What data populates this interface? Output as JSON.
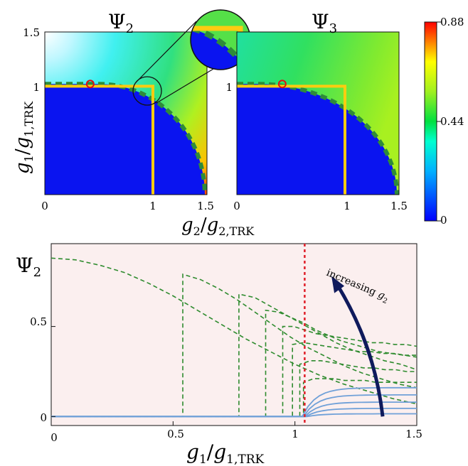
{
  "chart_data": [
    {
      "type": "heatmap",
      "title": "Ψ2",
      "title_symbol": "Ψ",
      "title_sub": "2",
      "x": {
        "range": [
          0,
          1.5
        ],
        "ticks": [
          0,
          1,
          1.5
        ],
        "tick_labels": [
          "0",
          "1",
          "1.5"
        ]
      },
      "y": {
        "range": [
          0,
          1.5
        ],
        "ticks": [
          1,
          1.5
        ],
        "tick_labels": [
          "1",
          "1.5"
        ]
      },
      "phase_boundary": "dashed green quarter-arc from (0.5, 1.02) to (1.48, 0)",
      "marker": {
        "shape": "open circle",
        "x": 0.42,
        "y": 1.02
      },
      "yellow_path": [
        [
          0,
          1
        ],
        [
          1,
          1
        ],
        [
          1,
          0
        ]
      ],
      "inset": "magnified view of the corner near (1, 1)"
    },
    {
      "type": "heatmap",
      "title": "Ψ3",
      "title_symbol": "Ψ",
      "title_sub": "3",
      "x": {
        "range": [
          0,
          1.5
        ],
        "ticks": [
          0,
          1,
          1.5
        ],
        "tick_labels": [
          "0",
          "1",
          "1.5"
        ]
      },
      "y": {
        "range": [
          0,
          1.5
        ],
        "ticks": [
          1
        ],
        "tick_labels": [
          "1"
        ]
      },
      "phase_boundary": "dashed green quarter-arc from (0.2, 1.02) to (1.48, 0)",
      "marker": {
        "shape": "open circle",
        "x": 0.42,
        "y": 1.02
      },
      "yellow_path": [
        [
          0,
          1
        ],
        [
          1,
          1
        ],
        [
          1,
          0
        ]
      ]
    },
    {
      "type": "colorbar",
      "range": [
        0,
        0.88
      ],
      "ticks": [
        0,
        0.44,
        0.88
      ],
      "tick_labels": [
        "0",
        "0.44",
        "0.88"
      ],
      "colormap": "jet"
    },
    {
      "type": "line",
      "ylabel_symbol": "Ψ",
      "ylabel_sub": "2",
      "xlabel_main": "g",
      "xlabel_sub1": "1",
      "xlabel_sub2": "1,TRK",
      "xlim": [
        0,
        1.5
      ],
      "ylim": [
        -0.05,
        0.96
      ],
      "x_ticks": [
        0,
        0.5,
        1,
        1.5
      ],
      "x_tick_labels": [
        "0",
        "0.5",
        "1",
        "1.5"
      ],
      "y_ticks": [
        0,
        0.5
      ],
      "y_tick_labels": [
        "0",
        "0.5"
      ],
      "vline": {
        "x": 1.04,
        "style": "dotted",
        "color": "#e0202a"
      },
      "annotation": {
        "text": "increasing ",
        "math_main": "g",
        "math_sub": "2"
      },
      "arrow": {
        "from": [
          1.36,
          0.0
        ],
        "to": [
          1.15,
          0.78
        ]
      },
      "series": [
        {
          "style": "dashed",
          "color": "#2e8b2e",
          "start": 0.0,
          "values": [
            0.88,
            0.87,
            0.84,
            0.8,
            0.74,
            0.67,
            0.59,
            0.51,
            0.43,
            0.36,
            0.29,
            0.23,
            0.18,
            0.14,
            0.1,
            0.07
          ]
        },
        {
          "style": "dashed",
          "color": "#2e8b2e",
          "jump": 0.54,
          "values": [
            0.79,
            0.76,
            0.71,
            0.65,
            0.58,
            0.51,
            0.44,
            0.38,
            0.33,
            0.28,
            0.24,
            0.21,
            0.18,
            0.16
          ]
        },
        {
          "style": "dashed",
          "color": "#2e8b2e",
          "jump": 0.77,
          "values": [
            0.68,
            0.66,
            0.61,
            0.56,
            0.51,
            0.46,
            0.41,
            0.37,
            0.34,
            0.31,
            0.29,
            0.26
          ]
        },
        {
          "style": "dashed",
          "color": "#2e8b2e",
          "jump": 0.88,
          "values": [
            0.59,
            0.58,
            0.55,
            0.52,
            0.48,
            0.45,
            0.42,
            0.4,
            0.38,
            0.36,
            0.35,
            0.34,
            0.33
          ]
        },
        {
          "style": "dashed",
          "color": "#2e8b2e",
          "jump": 0.95,
          "values": [
            0.5,
            0.5,
            0.48,
            0.46,
            0.45,
            0.44,
            0.43,
            0.42,
            0.41,
            0.41,
            0.4,
            0.4,
            0.39
          ]
        },
        {
          "style": "dashed",
          "color": "#2e8b2e",
          "jump": 0.99,
          "values": [
            0.4,
            0.41,
            0.4,
            0.39,
            0.38,
            0.37,
            0.36,
            0.36,
            0.35,
            0.35,
            0.34,
            0.34
          ]
        },
        {
          "style": "dashed",
          "color": "#2e8b2e",
          "jump": 1.02,
          "values": [
            0.29,
            0.31,
            0.31,
            0.3,
            0.29,
            0.28,
            0.27,
            0.27,
            0.26,
            0.26,
            0.25,
            0.25
          ]
        },
        {
          "style": "dashed",
          "color": "#2e8b2e",
          "jump": 1.035,
          "values": [
            0.19,
            0.21,
            0.21,
            0.21,
            0.2,
            0.2,
            0.2,
            0.19,
            0.19,
            0.19,
            0.19,
            0.19
          ]
        },
        {
          "style": "solid",
          "color": "#6fa0d8",
          "rise": 1.03,
          "plateau": 0.16
        },
        {
          "style": "solid",
          "color": "#6fa0d8",
          "rise": 1.035,
          "plateau": 0.12
        },
        {
          "style": "solid",
          "color": "#6fa0d8",
          "rise": 1.04,
          "plateau": 0.08
        },
        {
          "style": "solid",
          "color": "#6fa0d8",
          "rise": 1.045,
          "plateau": 0.045
        },
        {
          "style": "solid",
          "color": "#6fa0d8",
          "rise": 1.05,
          "plateau": 0.015
        }
      ]
    }
  ],
  "labels": {
    "heatmap_xlabel_main": "g",
    "heatmap_xlabel_sub1": "2",
    "heatmap_xlabel_sub2": "2,TRK",
    "heatmap_ylabel_main": "g",
    "heatmap_ylabel_sub1": "1",
    "heatmap_ylabel_sub2": "1,TRK"
  }
}
